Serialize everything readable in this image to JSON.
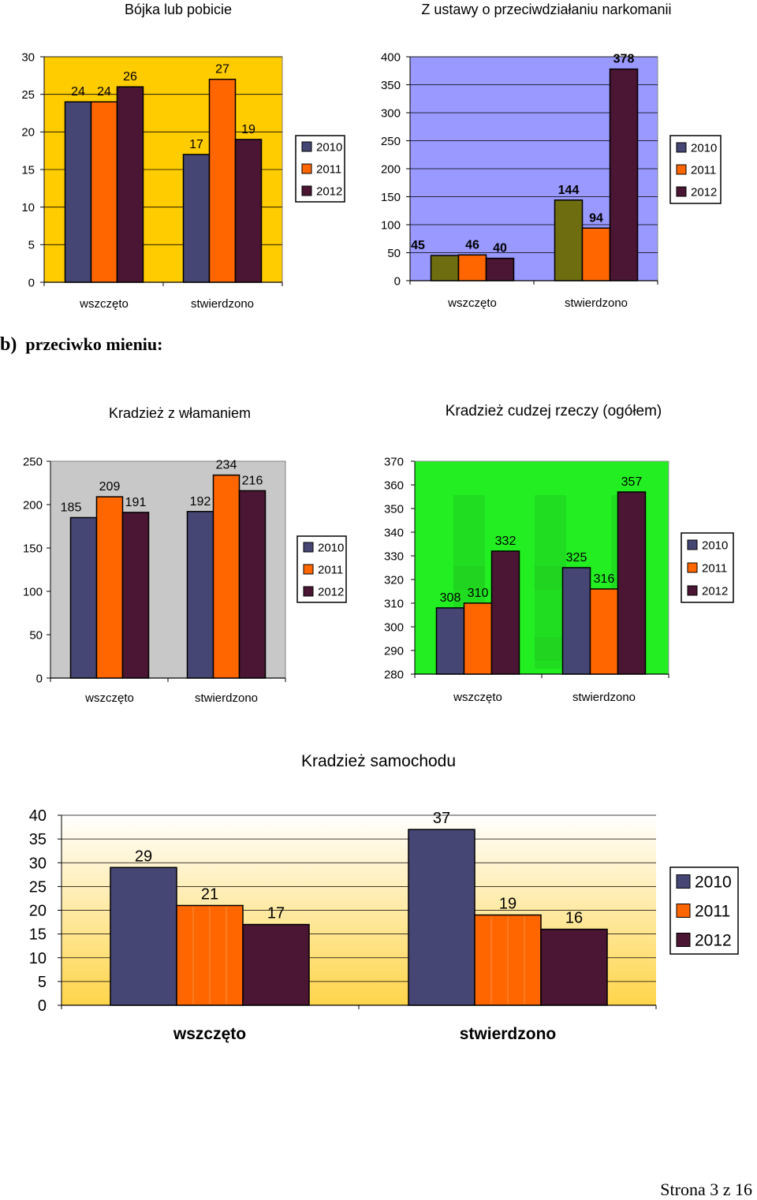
{
  "section": {
    "letter": "b)",
    "title": "przeciwko mieniu:"
  },
  "footer": {
    "page_label": "Strona 3 z 16"
  },
  "colors": {
    "series_2010": "#464675",
    "series_2011": "#ff6600",
    "series_2012": "#4a1633",
    "series_2010_alt": "#6e6e10"
  },
  "chart_data": [
    {
      "id": "bojka",
      "type": "bar",
      "title": "Bójka lub pobicie",
      "categories": [
        "wszczęto",
        "stwierdzono"
      ],
      "series": [
        {
          "name": "2010",
          "values": [
            24,
            17
          ]
        },
        {
          "name": "2011",
          "values": [
            24,
            27
          ]
        },
        {
          "name": "2012",
          "values": [
            26,
            19
          ]
        }
      ],
      "ylim": [
        0,
        30
      ],
      "yticks": [
        0,
        5,
        10,
        15,
        20,
        25,
        30
      ],
      "ytick_labels": [
        "0",
        "5",
        "10",
        "15",
        "20",
        "25",
        "30"
      ],
      "xlabel": "",
      "ylabel": "",
      "grid": true,
      "legend_position": "right",
      "background": "#ffcc00"
    },
    {
      "id": "narkomania",
      "type": "bar",
      "title": "Z ustawy o przeciwdziałaniu narkomanii",
      "categories": [
        "wszczęto",
        "stwierdzono"
      ],
      "series": [
        {
          "name": "2010",
          "values": [
            45,
            144
          ]
        },
        {
          "name": "2011",
          "values": [
            46,
            94
          ]
        },
        {
          "name": "2012",
          "values": [
            40,
            378
          ]
        }
      ],
      "ylim": [
        0,
        400
      ],
      "yticks": [
        0,
        50,
        100,
        150,
        200,
        250,
        300,
        350,
        400
      ],
      "ytick_labels": [
        "0",
        "50",
        "100",
        "150",
        "200",
        "250",
        "300",
        "350",
        "400"
      ],
      "xlabel": "",
      "ylabel": "",
      "grid": true,
      "legend_position": "right",
      "background": "#9999ff"
    },
    {
      "id": "wlamanie",
      "type": "bar",
      "title": "Kradzież z włamaniem",
      "categories": [
        "wszczęto",
        "stwierdzono"
      ],
      "series": [
        {
          "name": "2010",
          "values": [
            185,
            192
          ]
        },
        {
          "name": "2011",
          "values": [
            209,
            234
          ]
        },
        {
          "name": "2012",
          "values": [
            191,
            216
          ]
        }
      ],
      "ylim": [
        0,
        250
      ],
      "yticks": [
        0,
        50,
        100,
        150,
        200,
        250
      ],
      "ytick_labels": [
        "0",
        "50",
        "100",
        "150",
        "200",
        "250"
      ],
      "xlabel": "",
      "ylabel": "",
      "grid": false,
      "legend_position": "right",
      "background": "#c8c8c8"
    },
    {
      "id": "cudzej",
      "type": "bar",
      "title": "Kradzież cudzej rzeczy (ogółem)",
      "categories": [
        "wszczęto",
        "stwierdzono"
      ],
      "series": [
        {
          "name": "2010",
          "values": [
            308,
            325
          ]
        },
        {
          "name": "2011",
          "values": [
            310,
            316
          ]
        },
        {
          "name": "2012",
          "values": [
            332,
            357
          ]
        }
      ],
      "ylim": [
        280,
        370
      ],
      "yticks": [
        280,
        290,
        300,
        310,
        320,
        330,
        340,
        350,
        360,
        370
      ],
      "ytick_labels": [
        "280",
        "290",
        "300",
        "310",
        "320",
        "330",
        "340",
        "350",
        "360",
        "370"
      ],
      "xlabel": "",
      "ylabel": "",
      "grid": false,
      "legend_position": "right",
      "background": "#22ee22"
    },
    {
      "id": "samochod",
      "type": "bar",
      "title": "Kradzież samochodu",
      "categories": [
        "wszczęto",
        "stwierdzono"
      ],
      "series": [
        {
          "name": "2010",
          "values": [
            29,
            37
          ]
        },
        {
          "name": "2011",
          "values": [
            21,
            19
          ]
        },
        {
          "name": "2012",
          "values": [
            17,
            16
          ]
        }
      ],
      "ylim": [
        0,
        40
      ],
      "yticks": [
        0,
        5,
        10,
        15,
        20,
        25,
        30,
        35,
        40
      ],
      "ytick_labels": [
        "0",
        "5",
        "10",
        "15",
        "20",
        "25",
        "30",
        "35",
        "40"
      ],
      "xlabel": "",
      "ylabel": "",
      "grid": true,
      "legend_position": "right",
      "background": "#fff3b0"
    }
  ]
}
